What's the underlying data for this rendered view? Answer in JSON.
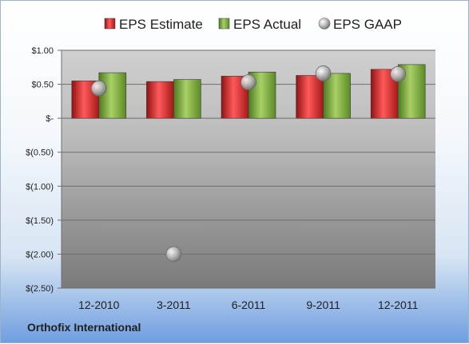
{
  "company": "Orthofix International",
  "colors": {
    "estimate": "#d42a2a",
    "actual": "#7fae3a",
    "gaap": "#a9a9a9"
  },
  "chart_data": {
    "type": "bar",
    "categories": [
      "12-2010",
      "3-2011",
      "6-2011",
      "9-2011",
      "12-2011"
    ],
    "series": [
      {
        "name": "EPS Estimate",
        "kind": "bar",
        "values": [
          0.55,
          0.54,
          0.62,
          0.63,
          0.72
        ]
      },
      {
        "name": "EPS Actual",
        "kind": "bar",
        "values": [
          0.67,
          0.57,
          0.68,
          0.66,
          0.79
        ]
      },
      {
        "name": "EPS GAAP",
        "kind": "scatter",
        "values": [
          0.44,
          -2.0,
          0.53,
          0.66,
          0.65
        ]
      }
    ],
    "ylim": [
      -2.5,
      1.0
    ],
    "yticks": [
      1.0,
      0.5,
      0,
      -0.5,
      -1.0,
      -1.5,
      -2.0,
      -2.5
    ],
    "ytick_labels": [
      "$1.00",
      "$0.50",
      "$-",
      "$(0.50)",
      "$(1.00)",
      "$(1.50)",
      "$(2.00)",
      "$(2.50)"
    ],
    "grid": true,
    "legend_position": "top"
  }
}
